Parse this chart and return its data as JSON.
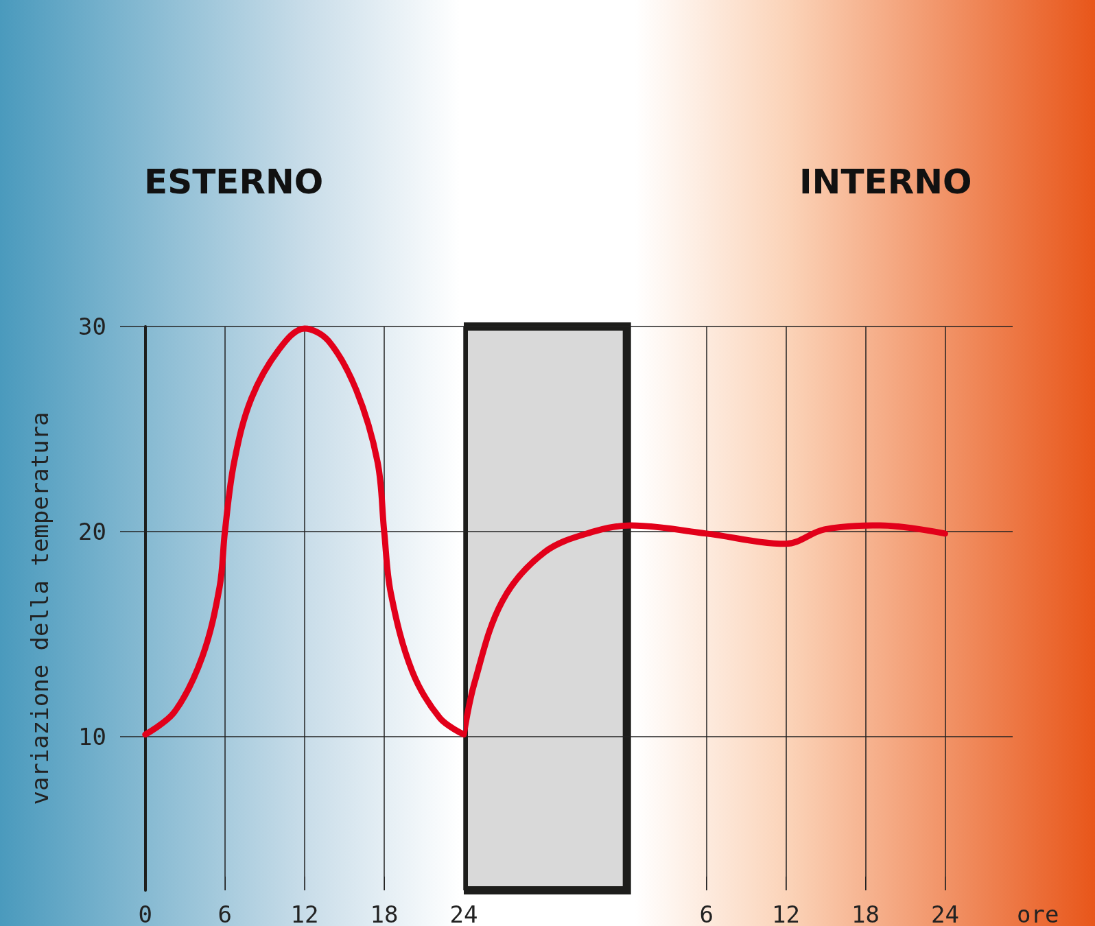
{
  "chart_data": [
    {
      "type": "line",
      "ylabel": "variazione della temperatura",
      "annotations": [
        "ESTERNO"
      ],
      "x": [
        0,
        2.2,
        4.3,
        5.6,
        6,
        6.7,
        8,
        10.1,
        12,
        13.8,
        15.9,
        17.5,
        18,
        18.5,
        20.1,
        22.2,
        24
      ],
      "series": [
        {
          "color": "#e2001a",
          "values": [
            10.1,
            11.2,
            13.9,
            17.3,
            20,
            23.4,
            26.5,
            28.9,
            29.9,
            29.3,
            26.9,
            23.4,
            20,
            17,
            13.2,
            10.9,
            10.1
          ]
        }
      ],
      "xlim": [
        -1.9,
        24
      ],
      "ylim": [
        2.5,
        30
      ],
      "xticks": [
        0,
        6,
        12,
        18,
        24
      ],
      "yticks": [
        10,
        20,
        30
      ],
      "grid": true,
      "line_style": "solid"
    },
    {
      "type": "line",
      "xlabel": "ore",
      "annotations": [
        "INTERNO"
      ],
      "x": [
        -12.3,
        -11.5,
        -9.4,
        -6.2,
        -2.5,
        0.3,
        6,
        12,
        14.9,
        19.1,
        24
      ],
      "series": [
        {
          "color": "#e2001a",
          "values": [
            10.1,
            12.6,
            16.6,
            19,
            20,
            20.3,
            19.9,
            19.4,
            20.1,
            20.3,
            19.9
          ]
        }
      ],
      "xlim": [
        -12.3,
        29.1
      ],
      "ylim": [
        2.5,
        30
      ],
      "xticks": [
        6,
        12,
        18,
        24
      ],
      "yticks": [
        10,
        20,
        30
      ],
      "bands": [
        {
          "axis": "x",
          "from": -12.3,
          "to": 0,
          "color": "#d9d9d9"
        }
      ],
      "tick_labels": "x",
      "grid": true,
      "line_style": "solid"
    }
  ]
}
